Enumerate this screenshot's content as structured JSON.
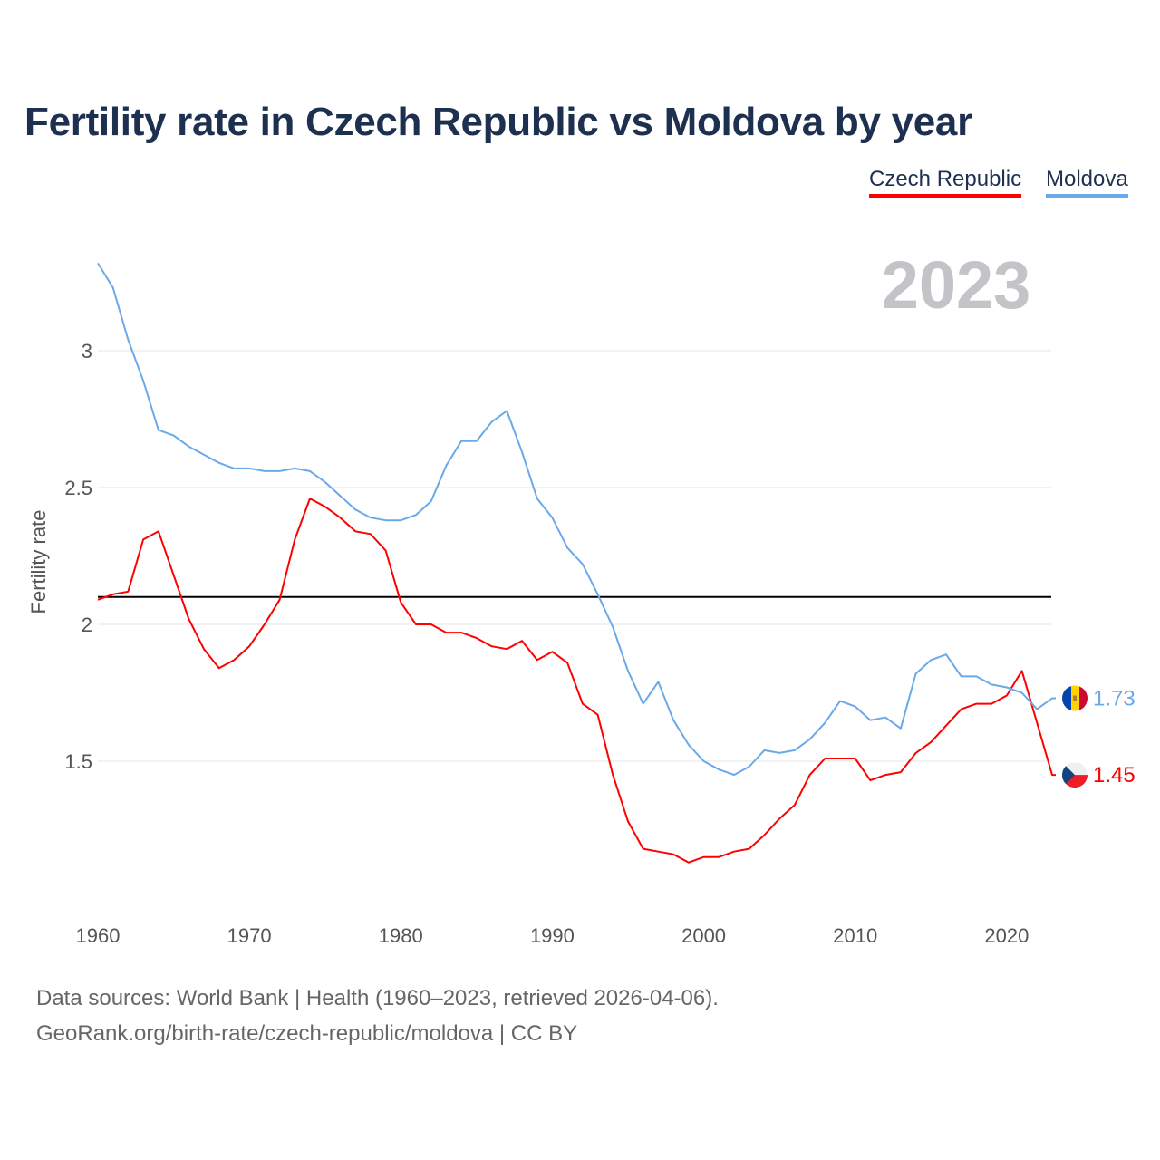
{
  "chart_data": {
    "type": "line",
    "title": "Fertility rate in Czech Republic vs Moldova by year",
    "xlabel": "",
    "ylabel": "Fertility rate",
    "xlim": [
      1960,
      2023
    ],
    "ylim": [
      1.0,
      3.35
    ],
    "x_ticks": [
      1960,
      1970,
      1980,
      1990,
      2000,
      2010,
      2020
    ],
    "y_ticks": [
      1.5,
      2,
      2.5,
      3
    ],
    "y_tick_labels": [
      "1.5",
      "2",
      "2.5",
      "3"
    ],
    "grid": true,
    "legend_position": "top-right",
    "year_label": "2023",
    "reference_line": {
      "value": 2.1,
      "color": "#000000"
    },
    "x": [
      1960,
      1961,
      1962,
      1963,
      1964,
      1965,
      1966,
      1967,
      1968,
      1969,
      1970,
      1971,
      1972,
      1973,
      1974,
      1975,
      1976,
      1977,
      1978,
      1979,
      1980,
      1981,
      1982,
      1983,
      1984,
      1985,
      1986,
      1987,
      1988,
      1989,
      1990,
      1991,
      1992,
      1993,
      1994,
      1995,
      1996,
      1997,
      1998,
      1999,
      2000,
      2001,
      2002,
      2003,
      2004,
      2005,
      2006,
      2007,
      2008,
      2009,
      2010,
      2011,
      2012,
      2013,
      2014,
      2015,
      2016,
      2017,
      2018,
      2019,
      2020,
      2021,
      2022,
      2023
    ],
    "series": [
      {
        "name": "Czech Republic",
        "color": "#ff0000",
        "end_label": "1.45",
        "flag": "czech-republic",
        "values": [
          2.09,
          2.11,
          2.12,
          2.31,
          2.34,
          2.18,
          2.02,
          1.91,
          1.84,
          1.87,
          1.92,
          2.0,
          2.09,
          2.31,
          2.46,
          2.43,
          2.39,
          2.34,
          2.33,
          2.27,
          2.08,
          2.0,
          2.0,
          1.97,
          1.97,
          1.95,
          1.92,
          1.91,
          1.94,
          1.87,
          1.9,
          1.86,
          1.71,
          1.67,
          1.45,
          1.28,
          1.18,
          1.17,
          1.16,
          1.13,
          1.15,
          1.15,
          1.17,
          1.18,
          1.23,
          1.29,
          1.34,
          1.45,
          1.51,
          1.51,
          1.51,
          1.43,
          1.45,
          1.46,
          1.53,
          1.57,
          1.63,
          1.69,
          1.71,
          1.71,
          1.74,
          1.83,
          1.64,
          1.45
        ]
      },
      {
        "name": "Moldova",
        "color": "#6aa9e9",
        "end_label": "1.73",
        "flag": "moldova",
        "values": [
          3.32,
          3.23,
          3.04,
          2.89,
          2.71,
          2.69,
          2.65,
          2.62,
          2.59,
          2.57,
          2.57,
          2.56,
          2.56,
          2.57,
          2.56,
          2.52,
          2.47,
          2.42,
          2.39,
          2.38,
          2.38,
          2.4,
          2.45,
          2.58,
          2.67,
          2.67,
          2.74,
          2.78,
          2.63,
          2.46,
          2.39,
          2.28,
          2.22,
          2.11,
          1.99,
          1.83,
          1.71,
          1.79,
          1.65,
          1.56,
          1.5,
          1.47,
          1.45,
          1.48,
          1.54,
          1.53,
          1.54,
          1.58,
          1.64,
          1.72,
          1.7,
          1.65,
          1.66,
          1.62,
          1.82,
          1.87,
          1.89,
          1.81,
          1.81,
          1.78,
          1.77,
          1.75,
          1.69,
          1.73
        ]
      }
    ]
  },
  "footer": {
    "sources": "Data sources: World Bank | Health (1960–2023, retrieved 2026-04-06).",
    "link": "GeoRank.org/birth-rate/czech-republic/moldova | CC BY"
  }
}
